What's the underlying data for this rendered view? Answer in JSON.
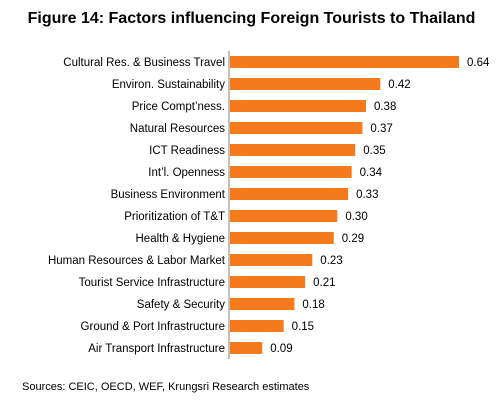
{
  "figure": {
    "title": "Figure 14: Factors influencing Foreign Tourists to Thailand",
    "source": "Sources: CEIC, OECD, WEF, Krungsri Research estimates"
  },
  "colors": {
    "bar": "#F47A1C",
    "axis": "#808080",
    "text": "#000000"
  },
  "chart_data": {
    "type": "bar",
    "orientation": "horizontal",
    "title": "Figure 14: Factors influencing Foreign Tourists to Thailand",
    "categories": [
      "Cultural Res. & Business Travel",
      "Environ. Sustainability",
      "Price Compt’ness.",
      "Natural Resources",
      "ICT Readiness",
      "Int’l. Openness",
      "Business Environment",
      "Prioritization of T&T",
      "Health & Hygiene",
      "Human Resources & Labor Market",
      "Tourist Service Infrastructure",
      "Safety & Security",
      "Ground & Port Infrastructure",
      "Air Transport Infrastructure"
    ],
    "values": [
      0.64,
      0.42,
      0.38,
      0.37,
      0.35,
      0.34,
      0.33,
      0.3,
      0.29,
      0.23,
      0.21,
      0.18,
      0.15,
      0.09
    ],
    "value_labels": [
      "0.64",
      "0.42",
      "0.38",
      "0.37",
      "0.35",
      "0.34",
      "0.33",
      "0.30",
      "0.29",
      "0.23",
      "0.21",
      "0.18",
      "0.15",
      "0.09"
    ],
    "xlim": [
      0,
      0.64
    ],
    "grid": false,
    "legend": "none",
    "data_labels": true
  }
}
